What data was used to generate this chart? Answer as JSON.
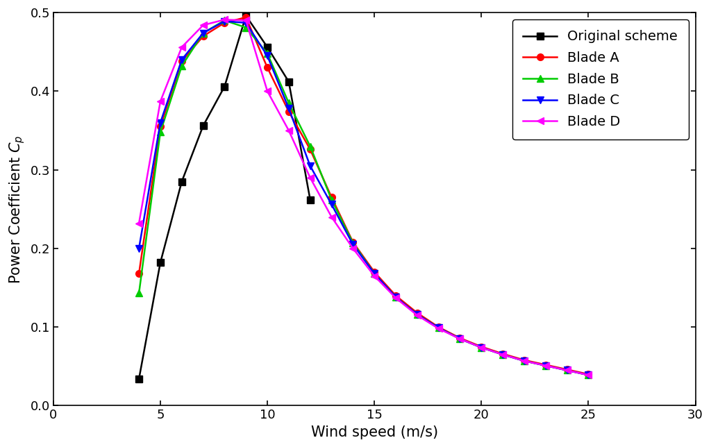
{
  "original_scheme": {
    "x": [
      4,
      5,
      6,
      7,
      8,
      9,
      10,
      11,
      12
    ],
    "y": [
      0.034,
      0.182,
      0.285,
      0.356,
      0.406,
      0.496,
      0.456,
      0.412,
      0.262
    ],
    "color": "#000000",
    "marker": "s",
    "label": "Original scheme",
    "lw": 1.8,
    "ms": 7
  },
  "blade_a": {
    "x": [
      4,
      5,
      6,
      7,
      8,
      9,
      10,
      11,
      12,
      13,
      14,
      15,
      16,
      17,
      18,
      19,
      20,
      21,
      22,
      23,
      24,
      25
    ],
    "y": [
      0.168,
      0.355,
      0.438,
      0.47,
      0.487,
      0.494,
      0.43,
      0.374,
      0.326,
      0.265,
      0.208,
      0.17,
      0.14,
      0.118,
      0.1,
      0.086,
      0.075,
      0.066,
      0.058,
      0.052,
      0.046,
      0.04
    ],
    "color": "#ff0000",
    "marker": "o",
    "label": "Blade A",
    "lw": 1.8,
    "ms": 7
  },
  "blade_b": {
    "x": [
      4,
      5,
      6,
      7,
      8,
      9,
      10,
      11,
      12,
      13,
      14,
      15,
      16,
      17,
      18,
      19,
      20,
      21,
      22,
      23,
      24,
      25
    ],
    "y": [
      0.143,
      0.348,
      0.432,
      0.474,
      0.49,
      0.481,
      0.448,
      0.385,
      0.33,
      0.262,
      0.207,
      0.168,
      0.138,
      0.116,
      0.099,
      0.085,
      0.074,
      0.065,
      0.057,
      0.051,
      0.045,
      0.039
    ],
    "color": "#00cc00",
    "marker": "^",
    "label": "Blade B",
    "lw": 1.8,
    "ms": 7
  },
  "blade_c": {
    "x": [
      4,
      5,
      6,
      7,
      8,
      9,
      10,
      11,
      12,
      13,
      14,
      15,
      16,
      17,
      18,
      19,
      20,
      21,
      22,
      23,
      24,
      25
    ],
    "y": [
      0.2,
      0.36,
      0.44,
      0.474,
      0.489,
      0.487,
      0.445,
      0.378,
      0.305,
      0.256,
      0.205,
      0.168,
      0.138,
      0.116,
      0.099,
      0.085,
      0.074,
      0.065,
      0.057,
      0.051,
      0.045,
      0.039
    ],
    "color": "#0000ff",
    "marker": "v",
    "label": "Blade C",
    "lw": 1.8,
    "ms": 7
  },
  "blade_d": {
    "x": [
      4,
      5,
      6,
      7,
      8,
      9,
      10,
      11,
      12,
      13,
      14,
      15,
      16,
      17,
      18,
      19,
      20,
      21,
      22,
      23,
      24,
      25
    ],
    "y": [
      0.232,
      0.387,
      0.456,
      0.484,
      0.491,
      0.49,
      0.4,
      0.35,
      0.29,
      0.24,
      0.2,
      0.165,
      0.137,
      0.115,
      0.098,
      0.085,
      0.074,
      0.065,
      0.057,
      0.051,
      0.045,
      0.039
    ],
    "color": "#ff00ff",
    "marker": "<",
    "label": "Blade D",
    "lw": 1.8,
    "ms": 7
  },
  "xlabel": "Wind speed (m/s)",
  "ylabel": "Power Coefficient $C_p$",
  "xlim": [
    0,
    30
  ],
  "ylim": [
    0.0,
    0.5
  ],
  "xticks": [
    0,
    5,
    10,
    15,
    20,
    25,
    30
  ],
  "yticks": [
    0.0,
    0.1,
    0.2,
    0.3,
    0.4,
    0.5
  ],
  "legend_loc": "upper right",
  "legend_fontsize": 14,
  "axis_label_fontsize": 15,
  "tick_fontsize": 13,
  "figure_width": 10.24,
  "figure_height": 6.44
}
